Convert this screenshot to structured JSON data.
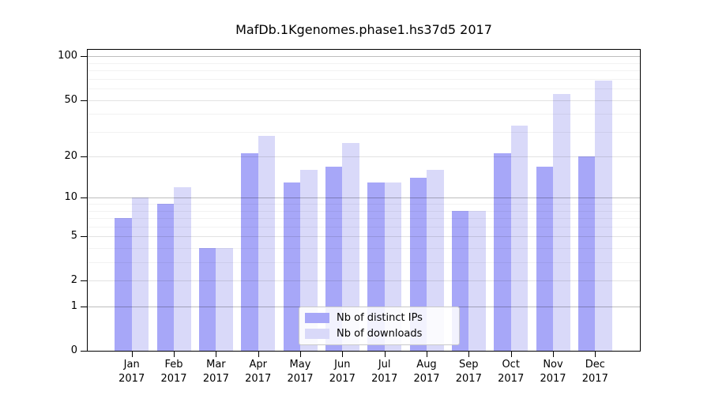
{
  "chart_data": {
    "type": "bar",
    "title": "MafDb.1Kgenomes.phase1.hs37d5 2017",
    "categories": [
      "Jan",
      "Feb",
      "Mar",
      "Apr",
      "May",
      "Jun",
      "Jul",
      "Aug",
      "Sep",
      "Oct",
      "Nov",
      "Dec"
    ],
    "year_label": "2017",
    "series": [
      {
        "name": "Nb of distinct IPs",
        "color": "#a7a7f8",
        "values": [
          7,
          9,
          4,
          21,
          13,
          17,
          13,
          14,
          8,
          21,
          17,
          20
        ]
      },
      {
        "name": "Nb of downloads",
        "color": "#d9d9f9",
        "values": [
          10,
          12,
          4,
          28,
          16,
          25,
          13,
          16,
          8,
          33,
          55,
          68
        ]
      }
    ],
    "y_ticks": [
      0,
      1,
      2,
      5,
      10,
      20,
      50,
      100
    ],
    "y_minor_ticks": [
      3,
      4,
      6,
      7,
      8,
      9,
      30,
      40,
      60,
      70,
      80,
      90
    ],
    "y_scale": "log1p",
    "y_max": 111,
    "xlabel": "",
    "ylabel": "",
    "grid": true,
    "legend_position": "lower center",
    "axis_color": "#000000"
  }
}
